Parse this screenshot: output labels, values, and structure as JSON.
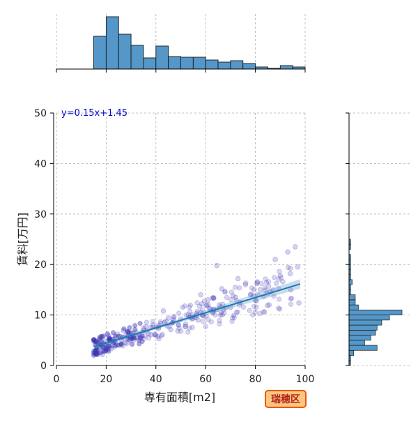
{
  "badge": {
    "label": "瑞穂区",
    "color": "#b3261e",
    "bg": "#ffc680",
    "border": "#e8590c"
  },
  "chart_data": {
    "type": "scatter",
    "title": "",
    "xlabel": "専有面積[m2]",
    "ylabel": "賃料[万円]",
    "xlim": [
      0,
      100
    ],
    "ylim": [
      0,
      50
    ],
    "xticks": [
      0,
      20,
      40,
      60,
      80,
      100
    ],
    "yticks": [
      0,
      10,
      20,
      30,
      40,
      50
    ],
    "grid": true,
    "point_color": "#3a34b3",
    "fit": {
      "equation": "y=0.15x+1.45",
      "slope": 0.15,
      "intercept": 1.45,
      "x_range": [
        15,
        98
      ],
      "color": "#1f77b4"
    },
    "x_sample": [
      [
        15,
        18.5,
        2.2
      ],
      [
        16,
        15.8,
        3.0
      ],
      [
        17,
        20.2,
        3.5
      ],
      [
        18,
        18.8,
        4.3
      ],
      [
        19,
        22.6,
        4.0
      ],
      [
        20,
        17.5,
        3.6
      ],
      [
        21,
        21.7,
        4.7
      ],
      [
        22,
        25.2,
        4.0
      ],
      [
        23,
        19.5,
        4.2
      ],
      [
        24,
        22.9,
        5.2
      ],
      [
        25,
        27.6,
        4.5
      ],
      [
        26,
        20.8,
        3.8
      ],
      [
        27,
        24.1,
        5.5
      ],
      [
        28,
        29.2,
        5.1
      ],
      [
        29,
        18.2,
        2.9
      ],
      [
        30,
        26.3,
        4.9
      ],
      [
        31,
        23.3,
        3.7
      ],
      [
        32,
        30.1,
        5.8
      ],
      [
        33,
        21.0,
        5.9
      ],
      [
        34,
        28.4,
        4.4
      ],
      [
        35,
        32.0,
        6.6
      ],
      [
        36,
        16.3,
        3.1
      ],
      [
        37,
        24.6,
        6.2
      ],
      [
        38,
        33.7,
        5.4
      ],
      [
        39,
        20.0,
        4.1
      ],
      [
        40,
        27.0,
        6.9
      ],
      [
        41,
        35.2,
        7.0
      ],
      [
        42,
        22.2,
        3.4
      ],
      [
        43,
        30.8,
        6.4
      ],
      [
        44,
        38.0,
        6.1
      ],
      [
        45,
        19.0,
        4.9
      ],
      [
        46,
        25.8,
        5.7
      ],
      [
        47,
        34.5,
        6.6
      ],
      [
        48,
        41.0,
        7.3
      ],
      [
        49,
        23.7,
        4.6
      ],
      [
        50,
        29.8,
        5.0
      ],
      [
        51,
        37.0,
        6.3
      ],
      [
        52,
        44.0,
        8.8
      ],
      [
        53,
        26.7,
        3.9
      ],
      [
        54,
        32.6,
        5.6
      ],
      [
        55,
        40.2,
        7.6
      ],
      [
        56,
        47.0,
        9.0
      ],
      [
        57,
        21.4,
        5.3
      ],
      [
        58,
        36.0,
        7.7
      ],
      [
        59,
        43.5,
        8.5
      ],
      [
        60,
        50.0,
        9.2
      ],
      [
        61,
        28.0,
        6.0
      ],
      [
        62,
        38.8,
        8.0
      ],
      [
        63,
        46.0,
        7.1
      ],
      [
        64,
        53.0,
        10.0
      ],
      [
        65,
        31.0,
        5.0
      ],
      [
        66,
        42.0,
        8.3
      ],
      [
        67,
        55.5,
        9.6
      ],
      [
        68,
        48.8,
        6.8
      ],
      [
        69,
        35.0,
        7.4
      ],
      [
        70,
        58.0,
        10.5
      ],
      [
        71,
        45.0,
        9.4
      ],
      [
        72,
        62.0,
        11.2
      ],
      [
        73,
        52.0,
        8.2
      ],
      [
        74,
        39.5,
        6.2
      ],
      [
        75,
        65.5,
        12.0
      ],
      [
        76,
        57.0,
        9.0
      ],
      [
        77,
        43.0,
        10.8
      ],
      [
        78,
        70.0,
        11.5
      ],
      [
        79,
        61.0,
        13.0
      ],
      [
        80,
        49.0,
        8.1
      ],
      [
        81,
        74.0,
        12.5
      ],
      [
        82,
        66.0,
        10.0
      ],
      [
        83,
        54.0,
        9.6
      ],
      [
        84,
        78.0,
        14.0
      ],
      [
        85,
        68.0,
        11.4
      ],
      [
        86,
        58.5,
        12.2
      ],
      [
        87,
        82.0,
        15.0
      ],
      [
        88,
        72.0,
        13.5
      ],
      [
        89,
        63.0,
        10.6
      ],
      [
        90,
        86.0,
        14.6
      ],
      [
        91,
        76.0,
        16.0
      ],
      [
        92,
        90.0,
        17.8
      ],
      [
        93,
        80.0,
        12.9
      ],
      [
        94,
        66.5,
        15.2
      ],
      [
        95,
        94.0,
        18.2
      ],
      [
        96,
        84.0,
        14.9
      ],
      [
        97,
        97.0,
        19.5
      ],
      [
        98,
        71.0,
        13.8
      ],
      [
        99,
        88.0,
        21.0
      ],
      [
        100,
        93.0,
        22.5
      ],
      [
        101,
        96.0,
        23.5
      ],
      [
        102,
        91.0,
        16.6
      ],
      [
        103,
        97.5,
        12.4
      ],
      [
        104,
        64.5,
        19.8
      ],
      [
        105,
        73.0,
        17.2
      ],
      [
        106,
        79.5,
        15.0
      ],
      [
        107,
        58.0,
        14.0
      ],
      [
        108,
        85.5,
        12.0
      ]
    ],
    "top_histogram": {
      "bin_start": 15,
      "bin_width": 5,
      "counts": [
        47,
        75,
        50,
        34,
        16,
        33,
        18,
        17,
        17,
        13,
        10,
        12,
        8,
        3,
        1,
        5,
        3
      ]
    },
    "right_histogram": {
      "bin_start": 0,
      "bin_width": 1,
      "counts": [
        1,
        1,
        3,
        18,
        10,
        14,
        17,
        18,
        21,
        26,
        34,
        6,
        4,
        4,
        1,
        1,
        2,
        1,
        1,
        1,
        1,
        1,
        0,
        1,
        1,
        0,
        0,
        0,
        0,
        0,
        0,
        0,
        0,
        0,
        0,
        0,
        0,
        0,
        0,
        0
      ]
    }
  }
}
